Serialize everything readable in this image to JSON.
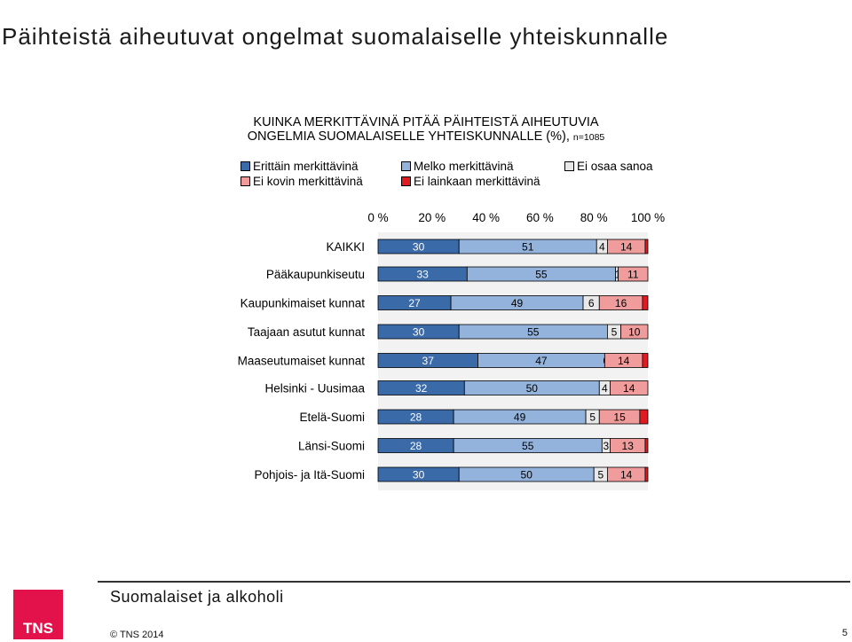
{
  "slide": {
    "title": "Päihteistä aiheutuvat ongelmat suomalaiselle yhteiskunnalle",
    "footer_title": "Suomalaiset ja alkoholi",
    "copyright": "© TNS 2014",
    "page_number": "5",
    "logo_text": "TNS"
  },
  "chart_data": {
    "type": "bar",
    "orientation": "horizontal",
    "stacked": true,
    "title_line1": "KUINKA MERKITTÄVINÄ PITÄÄ PÄIHTEISTÄ AIHEUTUVIA",
    "title_line2": "ONGELMIA SUOMALAISELLE YHTEISKUNNALLE (%),",
    "title_n": "n=1085",
    "x_ticks": [
      "0 %",
      "20 %",
      "40 %",
      "60 %",
      "80 %",
      "100 %"
    ],
    "xlim": [
      0,
      100
    ],
    "legend_position": "top",
    "series": [
      {
        "name": "Erittäin merkittävinä",
        "color": "#3a6aa8"
      },
      {
        "name": "Melko merkittävinä",
        "color": "#93b3dc"
      },
      {
        "name": "Ei osaa sanoa",
        "color": "#e8e8e8"
      },
      {
        "name": "Ei kovin merkittävinä",
        "color": "#f19c9c"
      },
      {
        "name": "Ei lainkaan merkittävinä",
        "color": "#e11b22"
      }
    ],
    "groups": [
      {
        "rows": [
          {
            "category": "KAIKKI",
            "values": [
              30,
              51,
              4,
              14,
              1
            ],
            "labels": [
              "30",
              "51",
              "4",
              "14",
              ""
            ]
          }
        ]
      },
      {
        "rows": [
          {
            "category": "Pääkaupunkiseutu",
            "values": [
              33,
              55,
              1,
              11,
              0
            ],
            "labels": [
              "33",
              "55",
              "1",
              "11",
              ""
            ]
          },
          {
            "category": "Kaupunkimaiset kunnat",
            "values": [
              27,
              49,
              6,
              16,
              2
            ],
            "labels": [
              "27",
              "49",
              "6",
              "16",
              ""
            ]
          },
          {
            "category": "Taajaan asutut kunnat",
            "values": [
              30,
              55,
              5,
              10,
              0
            ],
            "labels": [
              "30",
              "55",
              "5",
              "10",
              ""
            ]
          },
          {
            "category": "Maaseutumaiset kunnat",
            "values": [
              37,
              47,
              0,
              14,
              2
            ],
            "labels": [
              "37",
              "47",
              "0",
              "14",
              ""
            ]
          }
        ]
      },
      {
        "rows": [
          {
            "category": "Helsinki - Uusimaa",
            "values": [
              32,
              50,
              4,
              14,
              0
            ],
            "labels": [
              "32",
              "50",
              "4",
              "14",
              ""
            ]
          },
          {
            "category": "Etelä-Suomi",
            "values": [
              28,
              49,
              5,
              15,
              3
            ],
            "labels": [
              "28",
              "49",
              "5",
              "15",
              ""
            ]
          },
          {
            "category": "Länsi-Suomi",
            "values": [
              28,
              55,
              3,
              13,
              1
            ],
            "labels": [
              "28",
              "55",
              "3",
              "13",
              ""
            ]
          },
          {
            "category": "Pohjois- ja Itä-Suomi",
            "values": [
              30,
              50,
              5,
              14,
              1
            ],
            "labels": [
              "30",
              "50",
              "5",
              "14",
              ""
            ]
          }
        ]
      }
    ]
  }
}
